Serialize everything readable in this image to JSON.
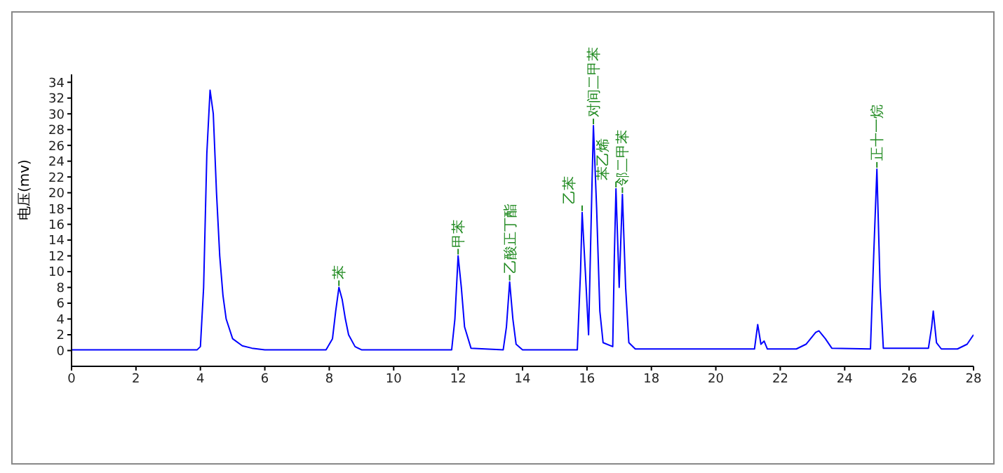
{
  "chart_data": {
    "type": "line",
    "ylabel": "电压(mv)",
    "x": [
      0,
      1,
      2,
      3,
      3.9,
      4.0,
      4.1,
      4.2,
      4.3,
      4.4,
      4.5,
      4.6,
      4.7,
      4.8,
      5.0,
      5.3,
      5.6,
      6,
      7.9,
      8.1,
      8.2,
      8.3,
      8.4,
      8.5,
      8.6,
      8.8,
      9.0,
      11.8,
      11.9,
      12.0,
      12.1,
      12.2,
      12.4,
      13.4,
      13.5,
      13.6,
      13.7,
      13.8,
      14.0,
      15.7,
      15.8,
      15.85,
      15.95,
      16.05,
      16.15,
      16.2,
      16.3,
      16.4,
      16.5,
      16.8,
      16.85,
      16.9,
      17.0,
      17.1,
      17.2,
      17.3,
      17.5,
      21.2,
      21.3,
      21.4,
      21.5,
      21.6,
      22.5,
      22.8,
      23.1,
      23.2,
      23.4,
      23.6,
      24.8,
      24.9,
      25.0,
      25.1,
      25.2,
      26.6,
      26.7,
      26.75,
      26.85,
      27.0,
      27.5,
      27.8,
      28
    ],
    "series": [
      {
        "color": "#0000ff",
        "values": [
          0.1,
          0.1,
          0.1,
          0.1,
          0.1,
          0.5,
          8,
          25,
          33,
          30,
          20,
          12,
          7,
          4,
          1.5,
          0.6,
          0.3,
          0.1,
          0.1,
          1.5,
          5,
          8,
          6.5,
          4,
          2,
          0.5,
          0.1,
          0.1,
          4,
          12,
          8,
          3,
          0.3,
          0.1,
          3,
          8.7,
          4,
          0.8,
          0.1,
          0.1,
          10,
          17.5,
          10,
          2,
          20,
          28.5,
          18,
          5,
          1,
          0.5,
          12,
          20.5,
          8,
          19.8,
          8,
          1,
          0.2,
          0.2,
          3.3,
          0.8,
          1.2,
          0.2,
          0.2,
          0.8,
          2.3,
          2.5,
          1.5,
          0.3,
          0.2,
          12,
          23,
          8,
          0.3,
          0.3,
          3,
          5,
          1,
          0.2,
          0.2,
          0.8,
          2
        ]
      }
    ],
    "xlim": [
      0,
      28
    ],
    "xticks": [
      0,
      2,
      4,
      6,
      8,
      10,
      12,
      14,
      16,
      18,
      20,
      22,
      24,
      26,
      28
    ],
    "ylim": [
      -2,
      35
    ],
    "yticks": [
      0,
      2,
      4,
      6,
      8,
      10,
      12,
      14,
      16,
      18,
      20,
      22,
      24,
      26,
      28,
      30,
      32,
      34
    ],
    "grid": false,
    "legend": false,
    "marker": "none",
    "line_style": "solid",
    "annotations": [
      {
        "text": "苯",
        "x": 8.3,
        "y": 8
      },
      {
        "text": "甲苯",
        "x": 12.0,
        "y": 12
      },
      {
        "text": "乙酸正丁酯",
        "x": 13.6,
        "y": 8.7
      },
      {
        "text": "乙苯",
        "x": 15.85,
        "y": 17.5
      },
      {
        "text": "对间二甲苯",
        "x": 16.2,
        "y": 28.5
      },
      {
        "text": "苯乙烯",
        "x": 16.9,
        "y": 20.5
      },
      {
        "text": "邻二甲苯",
        "x": 17.1,
        "y": 19.8
      },
      {
        "text": "正十一烷",
        "x": 25.0,
        "y": 23
      }
    ]
  }
}
